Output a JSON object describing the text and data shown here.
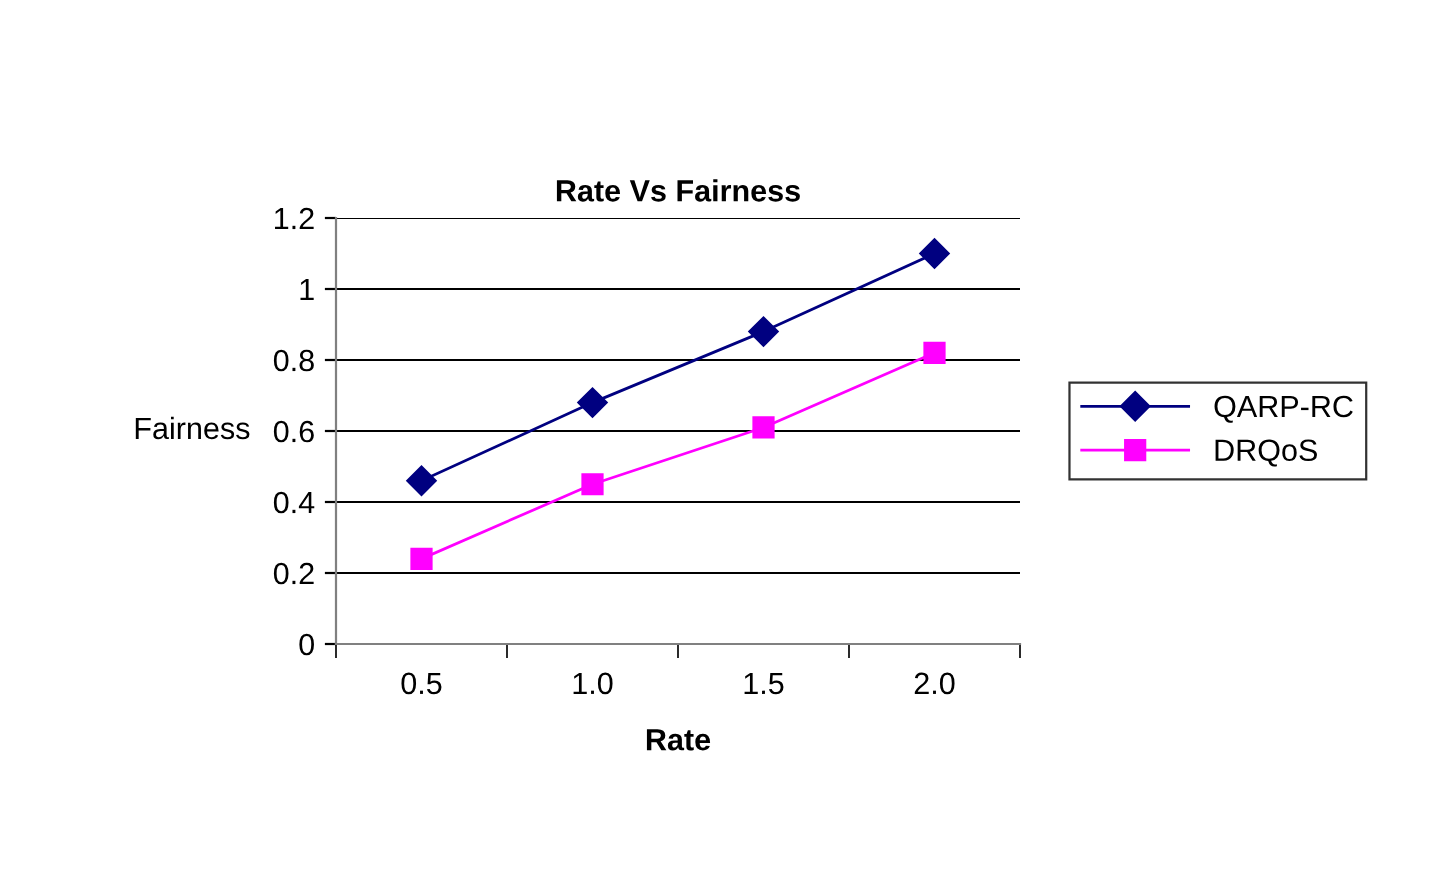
{
  "chart_data": {
    "type": "line",
    "title": "Rate Vs Fairness",
    "xlabel": "Rate",
    "ylabel": "Fairness",
    "categories": [
      "0.5",
      "1.0",
      "1.5",
      "2.0"
    ],
    "series": [
      {
        "name": "QARP-RC",
        "color": "#000080",
        "values": [
          0.46,
          0.68,
          0.88,
          1.1
        ],
        "marker": "diamond"
      },
      {
        "name": "DRQoS",
        "color": "#ff00ff",
        "values": [
          0.24,
          0.45,
          0.61,
          0.82
        ],
        "marker": "square"
      }
    ],
    "ylim": [
      0,
      1.2
    ],
    "yticks": [
      0,
      0.2,
      0.4,
      0.6,
      0.8,
      1,
      1.2
    ],
    "grid": "y",
    "legend": "right",
    "line_style": "solid"
  }
}
